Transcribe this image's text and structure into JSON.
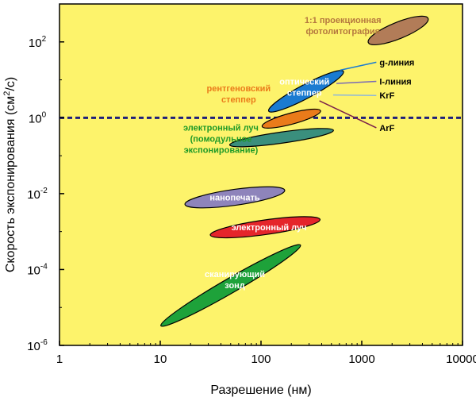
{
  "chart_data": {
    "type": "scatter",
    "title": "",
    "xlabel": "Разрешение (нм)",
    "ylabel_main": "Скорость экспонирования (см",
    "ylabel_sup": "2",
    "ylabel_tail": "/с)",
    "x_scale": "log",
    "y_scale": "log",
    "xlim": [
      1,
      10000
    ],
    "ylim": [
      1e-06,
      1000
    ],
    "background": "#fdf36b",
    "x_ticks": [
      {
        "value": 1,
        "label": "1"
      },
      {
        "value": 10,
        "label": "10"
      },
      {
        "value": 100,
        "label": "100"
      },
      {
        "value": 1000,
        "label": "1000"
      },
      {
        "value": 10000,
        "label": "10000"
      }
    ],
    "y_ticks": [
      {
        "value": 1e-06,
        "base": "10",
        "exp": "-6"
      },
      {
        "value": 0.0001,
        "base": "10",
        "exp": "-4"
      },
      {
        "value": 0.01,
        "base": "10",
        "exp": "-2"
      },
      {
        "value": 1,
        "base": "10",
        "exp": "0"
      },
      {
        "value": 100,
        "base": "10",
        "exp": "2"
      }
    ],
    "reference_line": {
      "y": 1,
      "style": "dashed",
      "color": "#1f1f7a"
    },
    "regions": [
      {
        "name": "projection-photolitho",
        "cx": 2300,
        "cy": 200,
        "rx": 0.32,
        "ry": 0.62,
        "rot": -22,
        "color": "#b27c58",
        "label": [
          "1:1 проекционная",
          "фотолитография"
        ],
        "label_color": "#b5783f",
        "label_x": 650,
        "label_y": 270,
        "label_anchor": "middle"
      },
      {
        "name": "optical-stepper",
        "cx": 280,
        "cy": 5.0,
        "rx": 0.42,
        "ry": 0.52,
        "rot": -28,
        "color": "#1a7bd1",
        "label": [
          "оптический",
          "степпер"
        ],
        "label_color": "#ffffff",
        "label_x": 270,
        "label_y": 6.5,
        "label_anchor": "middle"
      },
      {
        "name": "xray-stepper",
        "cx": 200,
        "cy": 0.95,
        "rx": 0.3,
        "ry": 0.42,
        "rot": -15,
        "color": "#ea7b1a",
        "label": [
          "рентгеновский",
          "степпер"
        ],
        "label_color": "#ea7b1a",
        "label_x": 60,
        "label_y": 4.3,
        "label_anchor": "middle"
      },
      {
        "name": "ebeam-cell",
        "cx": 160,
        "cy": 0.3,
        "rx": 0.52,
        "ry": 0.42,
        "rot": -8,
        "color": "#3a8f7d",
        "label": [
          "электронный луч",
          "(помодульное",
          "экспонирование)"
        ],
        "label_color": "#1e9a27",
        "label_x": 40,
        "label_y": 0.28,
        "label_anchor": "middle"
      },
      {
        "name": "nanoprint",
        "cx": 55,
        "cy": 0.008,
        "rx": 0.5,
        "ry": 0.6,
        "rot": -8,
        "color": "#8e84bb",
        "label": [
          "нанопечать"
        ],
        "label_color": "#ffffff",
        "label_x": 55,
        "label_y": 0.008,
        "label_anchor": "middle"
      },
      {
        "name": "ebeam",
        "cx": 110,
        "cy": 0.0013,
        "rx": 0.55,
        "ry": 0.55,
        "rot": -8,
        "color": "#e5252b",
        "label": [
          "электронный луч"
        ],
        "label_color": "#ffffff",
        "label_x": 120,
        "label_y": 0.0013,
        "label_anchor": "middle"
      },
      {
        "name": "scanning-probe",
        "cx": 50,
        "cy": 3.8e-05,
        "rx": 0.8,
        "ry": 0.55,
        "rot": -30,
        "color": "#1ea23a",
        "label": [
          "сканирующий",
          "зонд"
        ],
        "label_color": "#ffffff",
        "label_x": 55,
        "label_y": 5.5e-05,
        "label_anchor": "middle"
      }
    ],
    "side_labels": [
      {
        "name": "g-line",
        "text": "g-линия",
        "x": 1500,
        "y": 24,
        "line_color": "#1a7bd1",
        "line_from": [
          610,
          18
        ]
      },
      {
        "name": "i-line",
        "text": "I-линия",
        "x": 1500,
        "y": 7.5,
        "line_color": "#7a6bb5",
        "line_from": [
          560,
          8
        ]
      },
      {
        "name": "krf",
        "text": "KrF",
        "x": 1500,
        "y": 3.2,
        "line_color": "#8fb7d9",
        "line_from": [
          520,
          4
        ]
      },
      {
        "name": "arf",
        "text": "ArF",
        "x": 1500,
        "y": 0.45,
        "line_color": "#7a1f4a",
        "line_from": [
          380,
          2.8
        ]
      }
    ]
  }
}
